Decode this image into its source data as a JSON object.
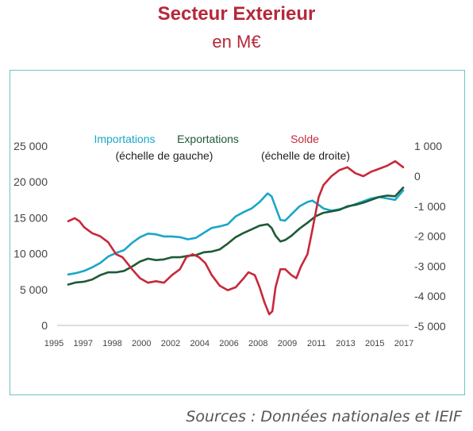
{
  "header": {
    "title": "Secteur Exterieur",
    "subtitle": "en M€"
  },
  "footer": {
    "source": "Sources : Données nationales et IEIF"
  },
  "colors": {
    "imports": "#1aa6c9",
    "exports": "#1e5a36",
    "solde": "#c8283a",
    "title": "#b5283a",
    "frame": "#6fc3c8"
  },
  "chart_data": {
    "type": "line",
    "legend": [
      {
        "name": "Importations",
        "note": "(échelle de gauche)",
        "color": "#1aa6c9"
      },
      {
        "name": "Exportations",
        "note": "",
        "color": "#1e5a36"
      },
      {
        "name": "Solde",
        "note": "(échelle de droite)",
        "color": "#c8283a"
      }
    ],
    "x_ticks": [
      "1995",
      "1997",
      "1998",
      "2000",
      "2002",
      "2004",
      "2006",
      "2008",
      "2009",
      "2011",
      "2013",
      "2015",
      "2017"
    ],
    "y_left": {
      "min": 0,
      "max": 25000,
      "ticks": [
        "25 000",
        "20 000",
        "15 000",
        "10 000",
        "5 000",
        "0"
      ],
      "tick_values": [
        25000,
        20000,
        15000,
        10000,
        5000,
        0
      ]
    },
    "y_right": {
      "min": -5000,
      "max": 1000,
      "ticks": [
        "1 000",
        "0",
        "-1 000",
        "-2 000",
        "-3 000",
        "-4 000",
        "-5 000"
      ],
      "tick_values": [
        1000,
        0,
        -1000,
        -2000,
        -3000,
        -4000,
        -5000
      ]
    },
    "series": [
      {
        "name": "Importations",
        "axis": "left",
        "color": "#1aa6c9",
        "points": [
          [
            1996,
            7100
          ],
          [
            1996.5,
            7300
          ],
          [
            1997,
            7600
          ],
          [
            1997.5,
            8100
          ],
          [
            1998,
            8700
          ],
          [
            1998.5,
            9600
          ],
          [
            1999,
            10100
          ],
          [
            1999.5,
            10500
          ],
          [
            2000,
            11500
          ],
          [
            2000.5,
            12300
          ],
          [
            2001,
            12800
          ],
          [
            2001.5,
            12700
          ],
          [
            2002,
            12400
          ],
          [
            2002.5,
            12400
          ],
          [
            2003,
            12300
          ],
          [
            2003.5,
            12000
          ],
          [
            2004,
            12200
          ],
          [
            2004.5,
            12900
          ],
          [
            2005,
            13600
          ],
          [
            2005.5,
            13800
          ],
          [
            2006,
            14100
          ],
          [
            2006.5,
            15200
          ],
          [
            2007,
            15800
          ],
          [
            2007.5,
            16300
          ],
          [
            2008,
            17200
          ],
          [
            2008.5,
            18400
          ],
          [
            2008.75,
            18000
          ],
          [
            2009,
            16500
          ],
          [
            2009.3,
            14700
          ],
          [
            2009.6,
            14600
          ],
          [
            2010,
            15500
          ],
          [
            2010.5,
            16600
          ],
          [
            2011,
            17200
          ],
          [
            2011.3,
            17400
          ],
          [
            2011.7,
            16800
          ],
          [
            2012,
            16300
          ],
          [
            2012.5,
            16000
          ],
          [
            2013,
            16200
          ],
          [
            2013.5,
            16500
          ],
          [
            2014,
            16900
          ],
          [
            2014.5,
            17300
          ],
          [
            2015,
            17700
          ],
          [
            2015.5,
            17900
          ],
          [
            2016,
            17700
          ],
          [
            2016.5,
            17500
          ],
          [
            2017,
            18800
          ]
        ]
      },
      {
        "name": "Exportations",
        "axis": "left",
        "color": "#1e5a36",
        "points": [
          [
            1996,
            5700
          ],
          [
            1996.5,
            6000
          ],
          [
            1997,
            6100
          ],
          [
            1997.5,
            6400
          ],
          [
            1998,
            7000
          ],
          [
            1998.5,
            7400
          ],
          [
            1999,
            7400
          ],
          [
            1999.5,
            7600
          ],
          [
            2000,
            8200
          ],
          [
            2000.5,
            8900
          ],
          [
            2001,
            9300
          ],
          [
            2001.5,
            9100
          ],
          [
            2002,
            9200
          ],
          [
            2002.5,
            9500
          ],
          [
            2003,
            9500
          ],
          [
            2003.5,
            9700
          ],
          [
            2004,
            9800
          ],
          [
            2004.5,
            10200
          ],
          [
            2005,
            10300
          ],
          [
            2005.5,
            10600
          ],
          [
            2006,
            11400
          ],
          [
            2006.5,
            12300
          ],
          [
            2007,
            12900
          ],
          [
            2007.5,
            13400
          ],
          [
            2008,
            13900
          ],
          [
            2008.5,
            14100
          ],
          [
            2008.75,
            13600
          ],
          [
            2009,
            12500
          ],
          [
            2009.3,
            11700
          ],
          [
            2009.6,
            11900
          ],
          [
            2010,
            12500
          ],
          [
            2010.5,
            13500
          ],
          [
            2011,
            14300
          ],
          [
            2011.5,
            15200
          ],
          [
            2012,
            15700
          ],
          [
            2012.5,
            15900
          ],
          [
            2013,
            16100
          ],
          [
            2013.5,
            16600
          ],
          [
            2014,
            16800
          ],
          [
            2014.5,
            17100
          ],
          [
            2015,
            17500
          ],
          [
            2015.5,
            17900
          ],
          [
            2016,
            18100
          ],
          [
            2016.5,
            18000
          ],
          [
            2017,
            19200
          ]
        ]
      },
      {
        "name": "Solde",
        "axis": "right",
        "color": "#c8283a",
        "points": [
          [
            1996,
            -1500
          ],
          [
            1996.4,
            -1400
          ],
          [
            1996.7,
            -1500
          ],
          [
            1997,
            -1700
          ],
          [
            1997.5,
            -1900
          ],
          [
            1998,
            -2000
          ],
          [
            1998.5,
            -2200
          ],
          [
            1999,
            -2600
          ],
          [
            1999.4,
            -2700
          ],
          [
            1999.7,
            -2900
          ],
          [
            2000,
            -3100
          ],
          [
            2000.5,
            -3400
          ],
          [
            2001,
            -3550
          ],
          [
            2001.5,
            -3500
          ],
          [
            2002,
            -3550
          ],
          [
            2002.5,
            -3300
          ],
          [
            2003,
            -3100
          ],
          [
            2003.4,
            -2700
          ],
          [
            2003.8,
            -2600
          ],
          [
            2004.2,
            -2700
          ],
          [
            2004.6,
            -2900
          ],
          [
            2005,
            -3300
          ],
          [
            2005.5,
            -3650
          ],
          [
            2006,
            -3800
          ],
          [
            2006.5,
            -3700
          ],
          [
            2007,
            -3400
          ],
          [
            2007.3,
            -3200
          ],
          [
            2007.7,
            -3300
          ],
          [
            2008,
            -3700
          ],
          [
            2008.3,
            -4200
          ],
          [
            2008.6,
            -4600
          ],
          [
            2008.8,
            -4500
          ],
          [
            2009,
            -3700
          ],
          [
            2009.3,
            -3100
          ],
          [
            2009.6,
            -3100
          ],
          [
            2010,
            -3300
          ],
          [
            2010.3,
            -3400
          ],
          [
            2010.6,
            -3000
          ],
          [
            2011,
            -2600
          ],
          [
            2011.3,
            -1800
          ],
          [
            2011.7,
            -700
          ],
          [
            2012,
            -300
          ],
          [
            2012.5,
            0
          ],
          [
            2013,
            200
          ],
          [
            2013.5,
            300
          ],
          [
            2014,
            100
          ],
          [
            2014.5,
            0
          ],
          [
            2015,
            150
          ],
          [
            2015.5,
            250
          ],
          [
            2016,
            350
          ],
          [
            2016.5,
            500
          ],
          [
            2017,
            300
          ]
        ]
      }
    ]
  }
}
